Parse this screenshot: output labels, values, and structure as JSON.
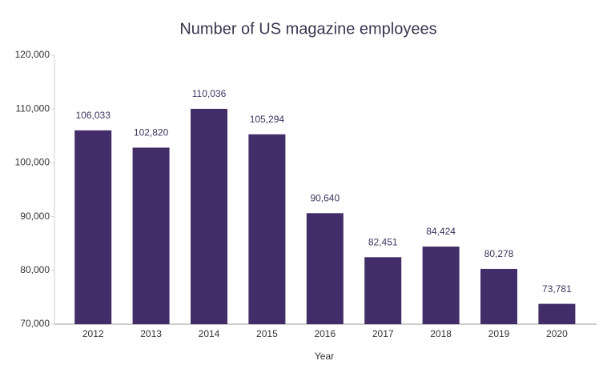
{
  "chart_data": {
    "type": "bar",
    "title": "Number of US magazine employees",
    "x_label": "Year",
    "categories": [
      "2012",
      "2013",
      "2014",
      "2015",
      "2016",
      "2017",
      "2018",
      "2019",
      "2020"
    ],
    "values": [
      106033,
      102820,
      110036,
      105294,
      90640,
      82451,
      84424,
      80278,
      73781
    ],
    "value_labels": [
      "106,033",
      "102,820",
      "110,036",
      "105,294",
      "90,640",
      "82,451",
      "84,424",
      "80,278",
      "73,781"
    ],
    "color": "#432d68",
    "ylim": [
      70000,
      120000
    ],
    "yticks": [
      {
        "value": 70000,
        "label": "70,000"
      },
      {
        "value": 80000,
        "label": "80,000"
      },
      {
        "value": 90000,
        "label": "90,000"
      },
      {
        "value": 100000,
        "label": "100,000"
      },
      {
        "value": 110000,
        "label": "110,000"
      },
      {
        "value": 120000,
        "label": "120,000"
      }
    ],
    "grid": false
  }
}
